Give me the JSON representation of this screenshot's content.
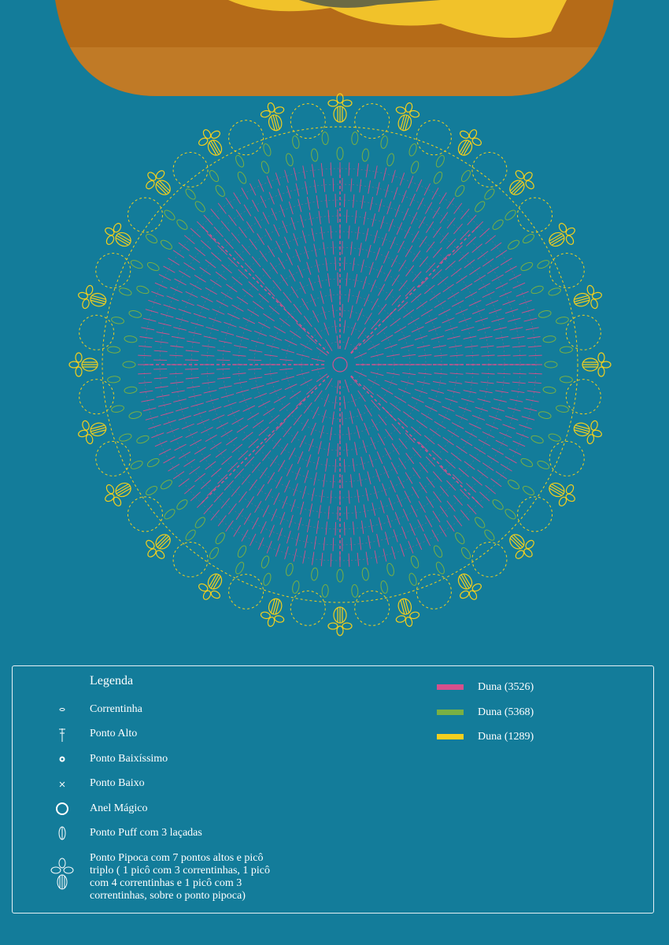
{
  "legend": {
    "title": "Legenda",
    "items": [
      "Correntinha",
      "Ponto Alto",
      "Ponto Baixíssimo",
      "Ponto Baixo",
      "Anel Mágico",
      "Ponto Puff com 3 laçadas",
      "Ponto Pipoca com 7 pontos altos e picô triplo ( 1 picô com 3 correntinhas, 1 picô com 4 correntinhas e 1 picô com 3 correntinhas, sobre o ponto pipoca)"
    ],
    "colors": [
      {
        "label": "Duna (3526)",
        "color": "#d6508c"
      },
      {
        "label": "Duna (5368)",
        "color": "#79b043"
      },
      {
        "label": "Duna (1289)",
        "color": "#f2cf1e"
      }
    ]
  }
}
